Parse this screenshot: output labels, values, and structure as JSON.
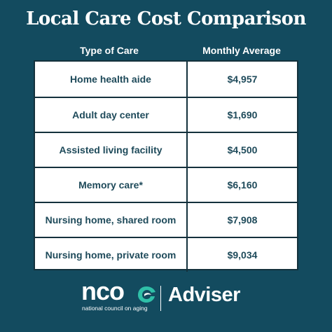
{
  "title": "Local Care Cost Comparison",
  "columns": {
    "type_header": "Type of Care",
    "value_header": "Monthly Average"
  },
  "chart_data": {
    "type": "table",
    "title": "Local Care Cost Comparison",
    "columns": [
      "Type of Care",
      "Monthly Average"
    ],
    "rows": [
      {
        "type": "Home health aide",
        "monthly_average": "$4,957"
      },
      {
        "type": "Adult day center",
        "monthly_average": "$1,690"
      },
      {
        "type": "Assisted living facility",
        "monthly_average": "$4,500"
      },
      {
        "type": "Memory care*",
        "monthly_average": "$6,160"
      },
      {
        "type": "Nursing home, shared room",
        "monthly_average": "$7,908"
      },
      {
        "type": "Nursing home, private room",
        "monthly_average": "$9,034"
      }
    ]
  },
  "footer": {
    "logo_text": "nco",
    "logo_subtitle": "national council on aging",
    "adviser": "Adviser",
    "logo_mark_icon": "ncoa-swoosh-icon"
  },
  "colors": {
    "background": "#134b5f",
    "table_text": "#1e4a5a",
    "table_border": "#14313c"
  }
}
